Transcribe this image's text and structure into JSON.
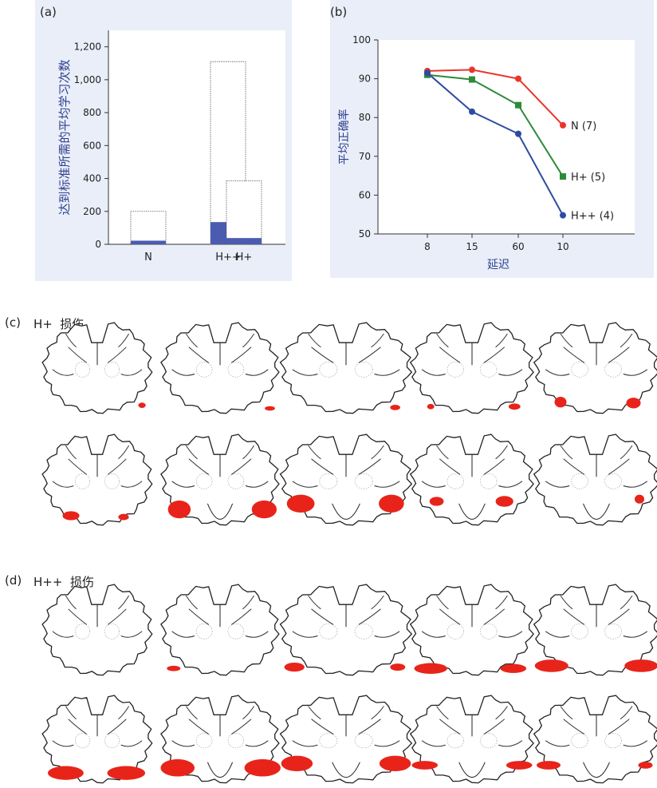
{
  "panel_a": {
    "label": "(a)"
  },
  "panel_b": {
    "label": "(b)"
  },
  "panel_c": {
    "label": "(c)",
    "title": "H+  损伤"
  },
  "panel_d": {
    "label": "(d)",
    "title": "H++  损伤"
  },
  "colors": {
    "panel_bg": "#e9eef8",
    "bar_fill": "#4a5bb0",
    "lesion": "#e8241a",
    "N": "#e8362a",
    "Hplus": "#2e8b3a",
    "Hplusplus": "#2d4ba0"
  },
  "chart_data": [
    {
      "type": "bar",
      "ylabel": "达到标准所需的平均学习次数",
      "categories": [
        "N",
        "H++",
        "H+"
      ],
      "series": [
        {
          "values": [
            200,
            1110,
            385
          ]
        },
        {
          "values": [
            22,
            135,
            38
          ]
        }
      ],
      "ylim": [
        0,
        1300
      ],
      "yticks": [
        "0",
        "200",
        "400",
        "600",
        "800",
        "1,000",
        "1,200"
      ],
      "ytick_values": [
        0,
        200,
        400,
        600,
        800,
        1000,
        1200
      ]
    },
    {
      "type": "line",
      "xlabel": "延迟",
      "ylabel": "平均正确率",
      "categories": [
        "8",
        "15",
        "60",
        "10"
      ],
      "ylim": [
        50,
        100
      ],
      "yticks": [
        "50",
        "60",
        "70",
        "80",
        "90",
        "100"
      ],
      "ytick_values": [
        50,
        60,
        70,
        80,
        90,
        100
      ],
      "series": [
        {
          "name": "N (7)",
          "color": "#e8362a",
          "marker": "circle",
          "values": [
            92,
            92.3,
            90,
            78
          ]
        },
        {
          "name": "H+ (5)",
          "color": "#2e8b3a",
          "marker": "square",
          "values": [
            91,
            89.8,
            83.2,
            64.8
          ]
        },
        {
          "name": "H++ (4)",
          "color": "#2d4ba0",
          "marker": "circle",
          "values": [
            91.5,
            81.5,
            75.8,
            54.8
          ]
        }
      ]
    }
  ]
}
